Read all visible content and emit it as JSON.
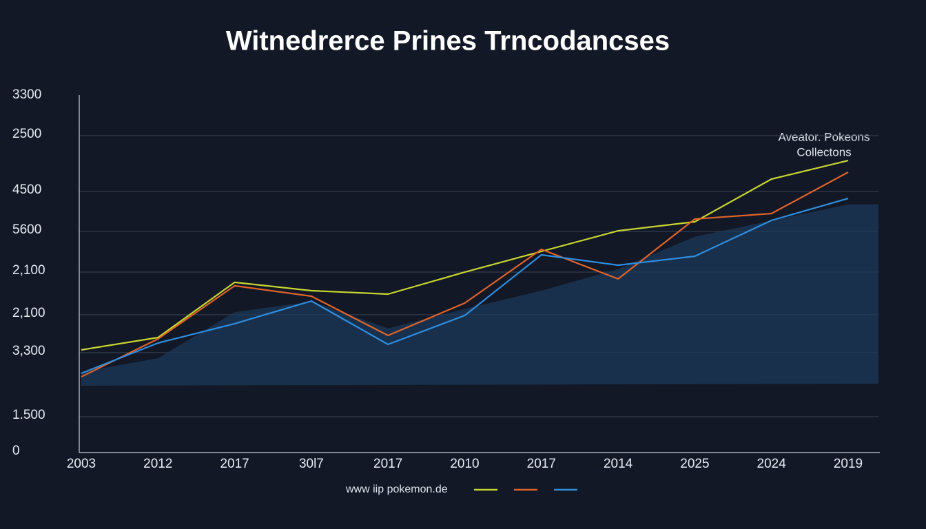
{
  "chart_data": {
    "type": "line",
    "title": "Witnedrerce Prines Trncodancses",
    "annotation": [
      "Aveator. Pokeons",
      "Collectons"
    ],
    "legend_text": "www  iip pokemon.de",
    "categories": [
      "2003",
      "2012",
      "2017",
      "30l7",
      "2017",
      "2010",
      "2017",
      "2014",
      "2025",
      "2024",
      "2019"
    ],
    "ylim": [
      0,
      3300
    ],
    "yticks": [
      0,
      {
        "value": 332,
        "label": "1.500"
      },
      {
        "value": 926,
        "label": "3,300"
      },
      {
        "value": 1277,
        "label": "2,100"
      },
      {
        "value": 1672,
        "label": "2,100"
      },
      {
        "value": 2049,
        "label": "5600"
      },
      {
        "value": 2419,
        "label": "4500"
      },
      {
        "value": 2936,
        "label": "2500"
      },
      {
        "value": 3300,
        "label": "3300"
      }
    ],
    "grid": true,
    "series": [
      {
        "color": "#1d3a5c",
        "kind": "area",
        "values": [
          747,
          874,
          1300,
          1400,
          1150,
          1330,
          1500,
          1700,
          2000,
          2150,
          2300
        ]
      },
      {
        "color": "#c8d630",
        "values": [
          951,
          1066,
          1577,
          1500,
          1468,
          1672,
          1864,
          2055,
          2138,
          2534,
          2706
        ]
      },
      {
        "color": "#e0642a",
        "values": [
          702,
          1053,
          1545,
          1449,
          1085,
          1385,
          1883,
          1609,
          2164,
          2215,
          2598
        ]
      },
      {
        "color": "#2f8ee0",
        "values": [
          734,
          1015,
          1194,
          1404,
          1002,
          1270,
          1832,
          1736,
          1819,
          2151,
          2355
        ]
      }
    ]
  }
}
